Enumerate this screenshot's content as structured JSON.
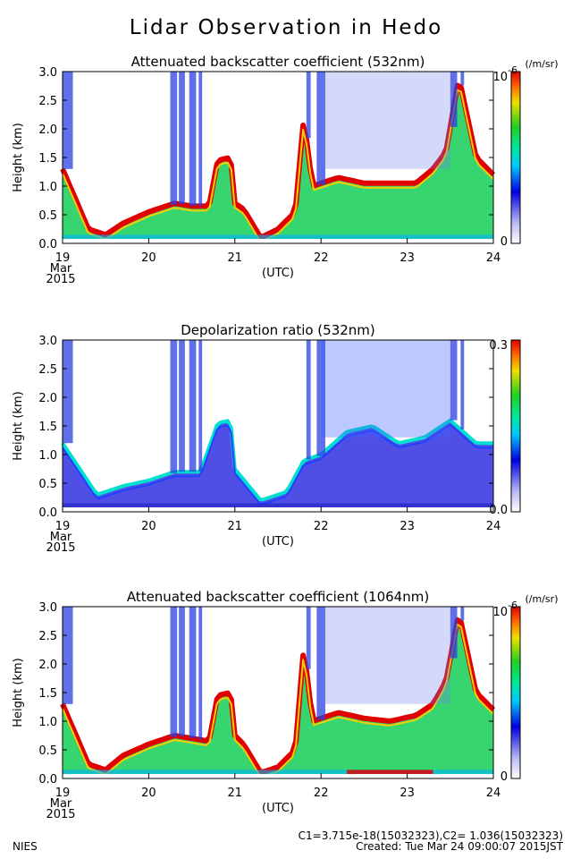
{
  "page": {
    "title": "Lidar Observation in Hedo",
    "footer_left": "NIES",
    "footer_line1": "C1=3.715e-18(15032323),C2= 1.036(15032323)",
    "footer_line2": "Created: Tue Mar 24 09:00:07 2015JST"
  },
  "chart_data": [
    {
      "type": "heatmap",
      "title": "Attenuated backscatter coefficient (532nm)",
      "ylabel": "Height (km)",
      "xlabel": "(UTC)",
      "x_ticks": [
        "19",
        "20",
        "21",
        "22",
        "23",
        "24"
      ],
      "x_first_tick_sub": [
        "Mar",
        "2015"
      ],
      "y_ticks": [
        "0.0",
        "0.5",
        "1.0",
        "1.5",
        "2.0",
        "2.5",
        "3.0"
      ],
      "xlim": [
        19,
        24
      ],
      "ylim": [
        0.0,
        3.0
      ],
      "colorbar": {
        "min_label": "0",
        "max_label": "10",
        "max_exponent": "-6",
        "unit": "(/m/sr)"
      },
      "layer_top_km": [
        [
          19.0,
          1.3
        ],
        [
          19.1,
          0.95
        ],
        [
          19.3,
          0.25
        ],
        [
          19.5,
          0.15
        ],
        [
          19.7,
          0.35
        ],
        [
          20.0,
          0.55
        ],
        [
          20.3,
          0.7
        ],
        [
          20.5,
          0.65
        ],
        [
          20.7,
          0.65
        ],
        [
          20.8,
          1.45
        ],
        [
          20.95,
          1.5
        ],
        [
          21.0,
          0.7
        ],
        [
          21.1,
          0.6
        ],
        [
          21.3,
          0.1
        ],
        [
          21.5,
          0.25
        ],
        [
          21.7,
          0.55
        ],
        [
          21.8,
          2.2
        ],
        [
          21.9,
          1.0
        ],
        [
          22.2,
          1.15
        ],
        [
          22.5,
          1.05
        ],
        [
          22.8,
          1.05
        ],
        [
          23.1,
          1.05
        ],
        [
          23.3,
          1.3
        ],
        [
          23.45,
          1.6
        ],
        [
          23.6,
          2.9
        ],
        [
          23.8,
          1.5
        ],
        [
          24.0,
          1.2
        ]
      ]
    },
    {
      "type": "heatmap",
      "title": "Depolarization ratio (532nm)",
      "ylabel": "Height (km)",
      "xlabel": "(UTC)",
      "x_ticks": [
        "19",
        "20",
        "21",
        "22",
        "23",
        "24"
      ],
      "x_first_tick_sub": [
        "Mar",
        "2015"
      ],
      "y_ticks": [
        "0.0",
        "0.5",
        "1.0",
        "1.5",
        "2.0",
        "2.5",
        "3.0"
      ],
      "xlim": [
        19,
        24
      ],
      "ylim": [
        0.0,
        3.0
      ],
      "colorbar": {
        "min_label": "0.0",
        "max_label": "0.3"
      },
      "layer_top_km": [
        [
          19.0,
          1.2
        ],
        [
          19.2,
          0.75
        ],
        [
          19.4,
          0.3
        ],
        [
          19.7,
          0.45
        ],
        [
          20.0,
          0.55
        ],
        [
          20.3,
          0.7
        ],
        [
          20.6,
          0.7
        ],
        [
          20.8,
          1.55
        ],
        [
          20.95,
          1.6
        ],
        [
          21.0,
          0.75
        ],
        [
          21.3,
          0.2
        ],
        [
          21.6,
          0.35
        ],
        [
          21.8,
          0.9
        ],
        [
          22.0,
          1.0
        ],
        [
          22.3,
          1.4
        ],
        [
          22.6,
          1.5
        ],
        [
          22.9,
          1.2
        ],
        [
          23.2,
          1.3
        ],
        [
          23.5,
          1.6
        ],
        [
          23.8,
          1.2
        ],
        [
          24.0,
          1.2
        ]
      ]
    },
    {
      "type": "heatmap",
      "title": "Attenuated backscatter coefficient (1064nm)",
      "ylabel": "Height (km)",
      "xlabel": "(UTC)",
      "x_ticks": [
        "19",
        "20",
        "21",
        "22",
        "23",
        "24"
      ],
      "x_first_tick_sub": [
        "Mar",
        "2015"
      ],
      "y_ticks": [
        "0.0",
        "0.5",
        "1.0",
        "1.5",
        "2.0",
        "2.5",
        "3.0"
      ],
      "xlim": [
        19,
        24
      ],
      "ylim": [
        0.0,
        3.0
      ],
      "colorbar": {
        "min_label": "0",
        "max_label": "10",
        "max_exponent": "-6",
        "unit": "(/m/sr)"
      },
      "layer_top_km": [
        [
          19.0,
          1.3
        ],
        [
          19.1,
          0.95
        ],
        [
          19.3,
          0.25
        ],
        [
          19.5,
          0.15
        ],
        [
          19.7,
          0.4
        ],
        [
          20.0,
          0.6
        ],
        [
          20.3,
          0.75
        ],
        [
          20.5,
          0.7
        ],
        [
          20.7,
          0.65
        ],
        [
          20.8,
          1.45
        ],
        [
          20.95,
          1.5
        ],
        [
          21.0,
          0.75
        ],
        [
          21.1,
          0.6
        ],
        [
          21.3,
          0.1
        ],
        [
          21.5,
          0.2
        ],
        [
          21.7,
          0.5
        ],
        [
          21.8,
          2.3
        ],
        [
          21.9,
          1.0
        ],
        [
          22.2,
          1.15
        ],
        [
          22.5,
          1.05
        ],
        [
          22.8,
          1.0
        ],
        [
          23.1,
          1.1
        ],
        [
          23.3,
          1.3
        ],
        [
          23.45,
          1.7
        ],
        [
          23.6,
          2.9
        ],
        [
          23.8,
          1.5
        ],
        [
          24.0,
          1.2
        ]
      ]
    }
  ]
}
